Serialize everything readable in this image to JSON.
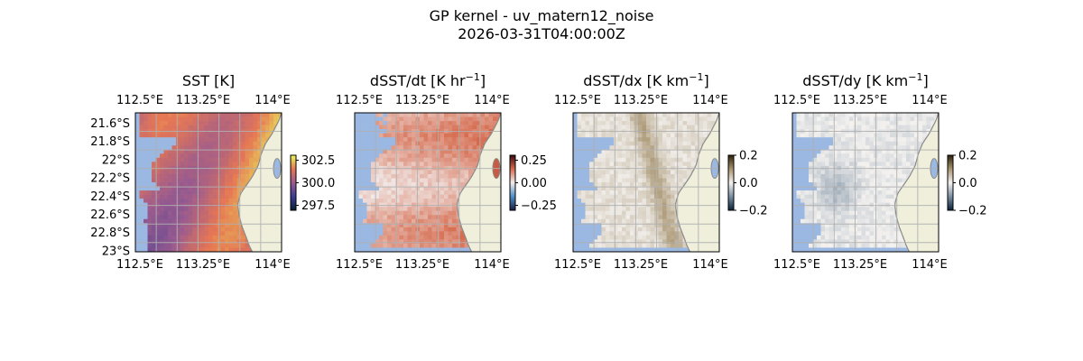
{
  "figure": {
    "title_line1": "GP kernel - uv_matern12_noise",
    "title_line2": "2026-03-31T04:00:00Z"
  },
  "colors": {
    "water_mask": "#9ab8e2",
    "land": "#efefdb",
    "coast": "#8a8a8a",
    "grid": "#b0b0b0"
  },
  "chart_data": [
    {
      "type": "heatmap",
      "title": "SST [K]",
      "colormap": "thermal",
      "x_ticks": [
        "112.5°E",
        "113.25°E",
        "114°E"
      ],
      "y_ticks": [
        "21.6°S",
        "21.8°S",
        "22°S",
        "22.2°S",
        "22.4°S",
        "22.6°S",
        "22.8°S",
        "23°S"
      ],
      "colorbar_ticks": [
        "302.5",
        "300.0",
        "297.5"
      ],
      "clim": [
        296.5,
        303.5
      ],
      "field": "Warm sea surface ~300–302 K, warmest near the coast to the east; masked water on the west side"
    },
    {
      "type": "heatmap",
      "title": "dSST/dt [K hr⁻¹]",
      "title_base": "dSST/dt [K hr",
      "title_sup": "−1",
      "colormap": "balance",
      "x_ticks": [
        "112.5°E",
        "113.25°E",
        "114°E"
      ],
      "y_ticks": [],
      "colorbar_ticks": [
        "0.25",
        "0.00",
        "−0.25"
      ],
      "clim": [
        -0.4,
        0.4
      ],
      "field": "Mostly small positive tendency (~0.05–0.15 K/hr); masked water on the west side"
    },
    {
      "type": "heatmap",
      "title": "dSST/dx [K km⁻¹]",
      "title_base": "dSST/dx [K km",
      "title_sup": "−1",
      "colormap": "diff",
      "x_ticks": [
        "112.5°E",
        "113.25°E",
        "114°E"
      ],
      "y_ticks": [],
      "colorbar_ticks": [
        "0.2",
        "0.0",
        "−0.2"
      ],
      "clim": [
        -0.2,
        0.2
      ],
      "field": "Near-zero zonal gradient with faint positive streaks"
    },
    {
      "type": "heatmap",
      "title": "dSST/dy [K km⁻¹]",
      "title_base": "dSST/dy [K km",
      "title_sup": "−1",
      "colormap": "diff",
      "x_ticks": [
        "112.5°E",
        "113.25°E",
        "114°E"
      ],
      "y_ticks": [],
      "colorbar_ticks": [
        "0.2",
        "0.0",
        "−0.2"
      ],
      "clim": [
        -0.2,
        0.2
      ],
      "field": "Near-zero meridional gradient with faint negative patches"
    }
  ]
}
